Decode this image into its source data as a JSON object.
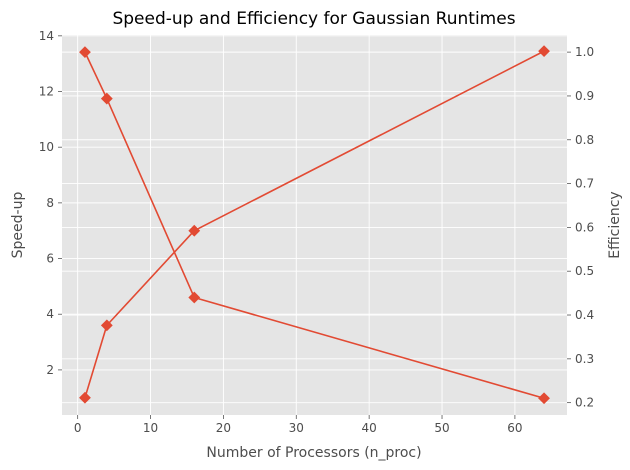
{
  "chart_data": {
    "type": "line",
    "title": "Speed-up and Efficiency for Gaussian Runtimes",
    "xlabel": "Number of Processors (n_proc)",
    "ylabel_left": "Speed-up",
    "ylabel_right": "Efficiency",
    "x": [
      1,
      4,
      16,
      64
    ],
    "xlim": [
      -2.15,
      67.15
    ],
    "ylim_left": [
      0.38,
      14.03
    ],
    "ylim_right": [
      0.1718,
      1.0391
    ],
    "x_ticks": [
      0,
      10,
      20,
      30,
      40,
      50,
      60
    ],
    "x_tick_labels": [
      "0",
      "10",
      "20",
      "30",
      "40",
      "50",
      "60"
    ],
    "y_ticks_left": [
      2,
      4,
      6,
      8,
      10,
      12,
      14
    ],
    "y_tick_labels_left": [
      "2",
      "4",
      "6",
      "8",
      "10",
      "12",
      "14"
    ],
    "y_ticks_right": [
      0.2,
      0.3,
      0.4,
      0.5,
      0.6,
      0.7,
      0.8,
      0.9,
      1.0
    ],
    "y_tick_labels_right": [
      "0.2",
      "0.3",
      "0.4",
      "0.5",
      "0.6",
      "0.7",
      "0.8",
      "0.9",
      "1.0"
    ],
    "grid": true,
    "series": [
      {
        "axis": "left",
        "values": [
          1.0,
          3.6,
          7.0,
          13.45
        ],
        "color": "#E24A33",
        "marker": "diamond"
      },
      {
        "axis": "right",
        "values": [
          1.0,
          0.894,
          0.44,
          0.21
        ],
        "color": "#E24A33",
        "marker": "diamond"
      }
    ],
    "colors": {
      "plot_bg": "#E5E5E5",
      "grid": "#FFFFFF",
      "text": "#4D4D4D",
      "tick": "#555555"
    }
  }
}
